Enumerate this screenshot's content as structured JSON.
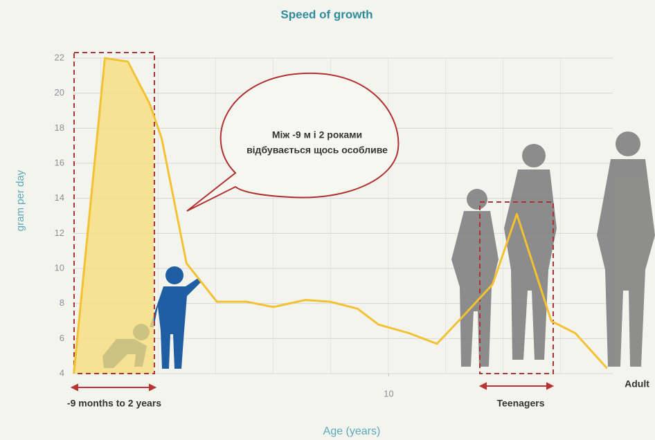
{
  "chart_data": {
    "type": "line",
    "title": "Speed of growth",
    "x_label": "Age (years)",
    "y_label": "gram per day",
    "x": [
      4.52,
      5.06,
      5.46,
      5.84,
      6.05,
      6.48,
      7.01,
      7.53,
      7.99,
      8.55,
      8.98,
      9.46,
      9.82,
      10.36,
      10.84,
      11.33,
      11.81,
      12.23,
      12.83,
      13.25,
      13.8
    ],
    "series": [
      {
        "color": "#f2c232",
        "values": [
          4,
          22,
          21.8,
          19.4,
          17.4,
          10.3,
          8.1,
          8.1,
          7.8,
          8.2,
          8.1,
          7.7,
          6.8,
          6.3,
          5.7,
          7.4,
          9.1,
          13.1,
          7,
          6.3,
          4.3
        ]
      }
    ],
    "xlim": [
      4.5,
      13.9
    ],
    "ylim": [
      4,
      22
    ],
    "xticks": [
      10
    ],
    "yticks": [
      4,
      6,
      8,
      10,
      12,
      14,
      16,
      18,
      20,
      22
    ],
    "grid": true,
    "annotations": [
      "Між -9 м і 2 роками",
      "відбувається щось особливе",
      "-9 months to 2 years",
      "Teenagers",
      "Adult"
    ]
  }
}
